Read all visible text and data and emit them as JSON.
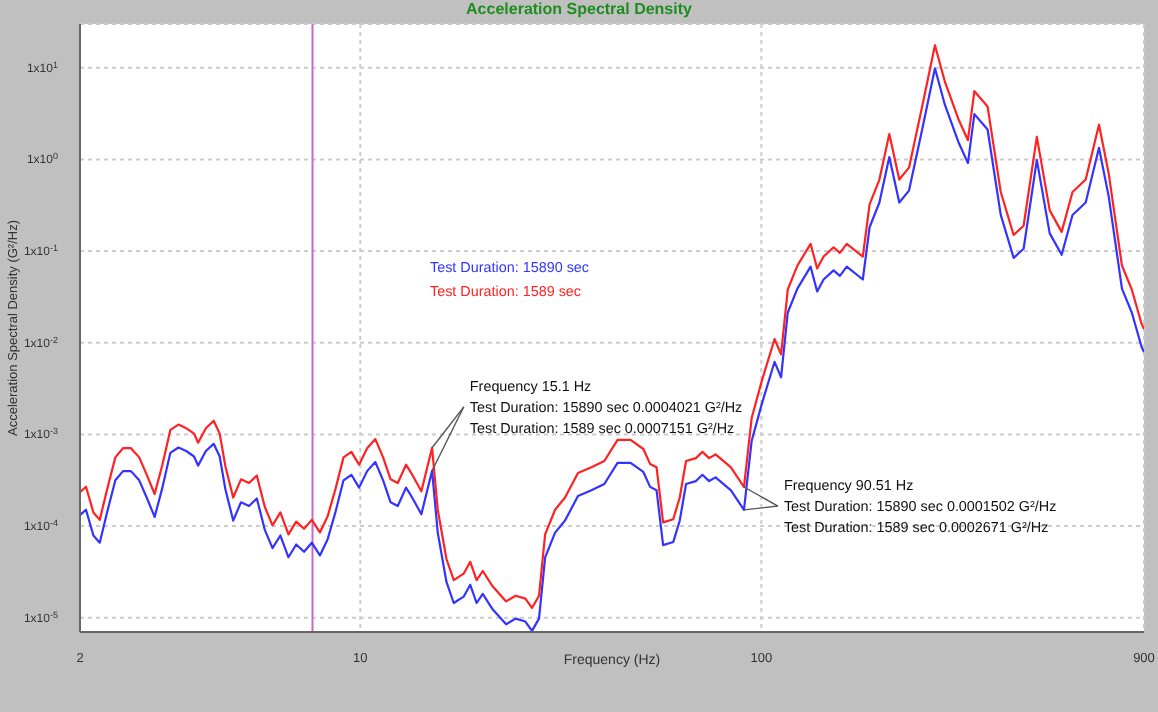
{
  "chart_data": {
    "type": "line",
    "title": "Acceleration Spectral Density",
    "xlabel": "Frequency (Hz)",
    "ylabel": "Acceleration Spectral Density (G²/Hz)",
    "log": "xy",
    "grid": true,
    "legend": "left",
    "xlim": [
      2,
      900
    ],
    "xticks": [
      2,
      10,
      100,
      900
    ],
    "ylim": [
      7e-06,
      30
    ],
    "yticks": [
      {
        "value": 1e-05,
        "label": "1x10$^{-5}$"
      },
      {
        "value": 0.0001,
        "label": "1x10$^{-4}$"
      },
      {
        "value": 0.001,
        "label": "1x10$^{-3}$"
      },
      {
        "value": 0.01,
        "label": "1x10$^{-2}$"
      },
      {
        "value": 0.1,
        "label": "1x10$^{-1}$"
      },
      {
        "value": 1,
        "label": "1x10$^{0}$"
      },
      {
        "value": 10,
        "label": "1x10$^{1}$"
      }
    ],
    "ref_lines": [
      {
        "axis": "x",
        "value": 7.6,
        "color": "#cc66cc"
      }
    ],
    "annotations": [
      {
        "text": "Frequency  15.1 Hz\nTest Duration: 15890 sec  0.0004021 G²/Hz\nTest Duration: 1589 sec  0.0007151 G²/Hz",
        "x": 15.1,
        "y": 0.0007151
      },
      {
        "text": "Frequency  90.51 Hz\nTest Duration: 15890 sec  0.0001502 G²/Hz\nTest Duration: 1589 sec  0.0002671 G²/Hz",
        "x": 90.51,
        "y": 0.0002671
      }
    ],
    "x": [
      2,
      2.07,
      2.16,
      2.24,
      2.34,
      2.45,
      2.56,
      2.68,
      2.81,
      2.94,
      3.07,
      3.21,
      3.36,
      3.52,
      3.68,
      3.85,
      3.94,
      4.12,
      4.31,
      4.46,
      4.61,
      4.82,
      5.04,
      5.28,
      5.52,
      5.78,
      6.04,
      6.32,
      6.62,
      6.92,
      7.24,
      7.57,
      7.93,
      8.29,
      8.68,
      9.08,
      9.5,
      9.93,
      10.4,
      10.9,
      11.4,
      11.9,
      12.4,
      13.0,
      13.4,
      14.2,
      15.1,
      15.6,
      16.4,
      17.1,
      18.1,
      18.8,
      19.5,
      20.2,
      21.4,
      23.1,
      24.4,
      25.8,
      26.8,
      27.9,
      28.9,
      30.6,
      32.4,
      34.9,
      37.7,
      40.6,
      43.8,
      47.2,
      50.8,
      52.8,
      54.8,
      56.9,
      60.3,
      62.6,
      64.9,
      68.7,
      71.3,
      74.1,
      76.9,
      84,
      90.51,
      94.6,
      100.2,
      107.9,
      112,
      116.4,
      123,
      132.7,
      137.8,
      143,
      151.4,
      157,
      163.3,
      179.1,
      186.2,
      197,
      208.5,
      220.8,
      233.5,
      251.8,
      271,
      287,
      309.8,
      327.5,
      339.8,
      366.6,
      395.4,
      425.8,
      450.9,
      486.4,
      523.8,
      561,
      597,
      644,
      695,
      735,
      793,
      839,
      887,
      900
    ],
    "series": [
      {
        "name": "Test Duration: 15890 sec",
        "color": "#3333ff",
        "values": [
          0.000132,
          0.000151,
          7.9e-05,
          6.6e-05,
          0.000145,
          0.000316,
          0.000398,
          0.000398,
          0.000316,
          0.0002,
          0.000126,
          0.000263,
          0.00063,
          0.00072,
          0.00066,
          0.000575,
          0.000457,
          0.00066,
          0.00079,
          0.000575,
          0.000251,
          0.000115,
          0.000182,
          0.000166,
          0.0002,
          9.1e-05,
          5.75e-05,
          7.9e-05,
          4.57e-05,
          6.3e-05,
          5.25e-05,
          6.6e-05,
          4.79e-05,
          7.2e-05,
          0.000145,
          0.000316,
          0.000363,
          0.000263,
          0.000398,
          0.0005,
          0.000316,
          0.000182,
          0.000166,
          0.000263,
          0.000213,
          0.000135,
          0.0004021,
          8.5e-05,
          2.46e-05,
          1.45e-05,
          1.7e-05,
          2.29e-05,
          1.45e-05,
          1.82e-05,
          1.23e-05,
          8.5e-06,
          9.8e-06,
          9.1e-06,
          7.2e-06,
          9.8e-06,
          4.57e-05,
          8.5e-05,
          0.000115,
          0.000213,
          0.000246,
          0.000288,
          0.00049,
          0.00049,
          0.00039,
          0.000268,
          0.000246,
          6.2e-05,
          6.7e-05,
          0.000115,
          0.000288,
          0.00031,
          0.000363,
          0.00031,
          0.00034,
          0.000246,
          0.0001502,
          0.00085,
          0.00213,
          0.0062,
          0.0042,
          0.0214,
          0.039,
          0.0676,
          0.0363,
          0.049,
          0.0617,
          0.0537,
          0.0676,
          0.049,
          0.182,
          0.339,
          1.06,
          0.339,
          0.457,
          2.12,
          9.86,
          3.93,
          1.56,
          0.912,
          3.12,
          2.12,
          0.248,
          0.0843,
          0.106,
          0.99,
          0.156,
          0.0912,
          0.248,
          0.339,
          1.34,
          0.393,
          0.039,
          0.0214,
          0.0091,
          0.0079
        ]
      },
      {
        "name": "Test Duration: 1589 sec",
        "color": "#ff2222",
        "values": [
          0.000235,
          0.000269,
          0.000141,
          0.000117,
          0.000258,
          0.000562,
          0.000708,
          0.000708,
          0.000562,
          0.000356,
          0.000224,
          0.000468,
          0.00112,
          0.00128,
          0.00117,
          0.00102,
          0.000813,
          0.00117,
          0.00141,
          0.00102,
          0.000447,
          0.000205,
          0.000324,
          0.000295,
          0.000356,
          0.000162,
          0.000102,
          0.000141,
          8.13e-05,
          0.000112,
          9.35e-05,
          0.000117,
          8.53e-05,
          0.000128,
          0.000258,
          0.000562,
          0.000646,
          0.000468,
          0.000708,
          0.00089,
          0.000562,
          0.000324,
          0.000295,
          0.000468,
          0.000379,
          0.00024,
          0.0007151,
          0.000151,
          4.38e-05,
          2.58e-05,
          3.03e-05,
          4.08e-05,
          2.58e-05,
          3.24e-05,
          2.19e-05,
          1.51e-05,
          1.74e-05,
          1.62e-05,
          1.28e-05,
          1.74e-05,
          8.13e-05,
          0.000151,
          0.000205,
          0.000379,
          0.000438,
          0.000513,
          0.000872,
          0.000872,
          0.000694,
          0.000477,
          0.000438,
          0.00011,
          0.000119,
          0.000205,
          0.000513,
          0.000552,
          0.000646,
          0.000552,
          0.000605,
          0.000438,
          0.0002671,
          0.00151,
          0.00379,
          0.011,
          0.00748,
          0.0381,
          0.0694,
          0.12,
          0.0646,
          0.0872,
          0.11,
          0.0956,
          0.12,
          0.0872,
          0.324,
          0.603,
          1.89,
          0.603,
          0.813,
          3.77,
          17.6,
          7.0,
          2.78,
          1.62,
          5.55,
          3.77,
          0.441,
          0.15,
          0.189,
          1.76,
          0.278,
          0.162,
          0.441,
          0.603,
          2.39,
          0.7,
          0.0694,
          0.0381,
          0.0162,
          0.0141
        ]
      }
    ]
  }
}
